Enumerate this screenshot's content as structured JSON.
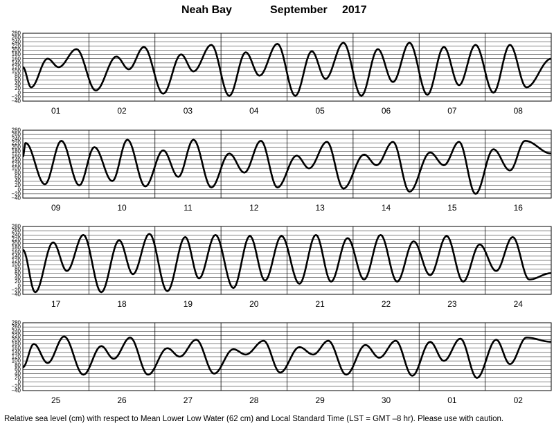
{
  "title": {
    "location": "Neah Bay",
    "month": "September",
    "year": "2017"
  },
  "caption": "Relative sea level (cm) with respect to Mean Lower Low Water (62 cm) and Local Standard Time (LST = GMT –8 hr). Please use with caution.",
  "chart_data": {
    "type": "line",
    "units": "cm",
    "ylim": [
      -40,
      280
    ],
    "yticks": [
      -40,
      -20,
      0,
      20,
      40,
      60,
      80,
      100,
      120,
      140,
      160,
      180,
      200,
      220,
      240,
      260,
      280
    ],
    "ytick_labels": [
      "−40",
      "−20",
      "0",
      "20",
      "40",
      "60",
      "80",
      "100",
      "120",
      "140",
      "160",
      "180",
      "200",
      "220",
      "240",
      "260",
      "280"
    ],
    "grid": true,
    "days": [
      "01",
      "02",
      "03",
      "04",
      "05",
      "06",
      "07",
      "08",
      "09",
      "10",
      "11",
      "12",
      "13",
      "14",
      "15",
      "16",
      "17",
      "18",
      "19",
      "20",
      "21",
      "22",
      "23",
      "24",
      "25",
      "26",
      "27",
      "28",
      "29",
      "30",
      "01",
      "02"
    ],
    "panels": [
      {
        "days": [
          "01",
          "02",
          "03",
          "04",
          "05",
          "06",
          "07",
          "08"
        ],
        "extrema": [
          [
            0,
            120
          ],
          [
            3,
            25
          ],
          [
            9,
            160
          ],
          [
            13,
            120
          ],
          [
            19.5,
            205
          ],
          [
            26.5,
            10
          ],
          [
            34,
            170
          ],
          [
            38.5,
            110
          ],
          [
            44,
            215
          ],
          [
            51,
            -5
          ],
          [
            57.5,
            180
          ],
          [
            62,
            100
          ],
          [
            68.5,
            225
          ],
          [
            75,
            -15
          ],
          [
            81,
            190
          ],
          [
            86,
            80
          ],
          [
            92.5,
            230
          ],
          [
            99,
            -15
          ],
          [
            105,
            195
          ],
          [
            110,
            65
          ],
          [
            116.5,
            235
          ],
          [
            123,
            -15
          ],
          [
            129,
            205
          ],
          [
            134.5,
            50
          ],
          [
            140.5,
            235
          ],
          [
            147,
            -10
          ],
          [
            153,
            215
          ],
          [
            158.5,
            35
          ],
          [
            164.5,
            225
          ],
          [
            171,
            0
          ],
          [
            177,
            225
          ],
          [
            183,
            25
          ],
          [
            192,
            160
          ]
        ]
      },
      {
        "days": [
          "09",
          "10",
          "11",
          "12",
          "13",
          "14",
          "15",
          "16"
        ],
        "extrema": [
          [
            0,
            155
          ],
          [
            1,
            220
          ],
          [
            8,
            25
          ],
          [
            14,
            230
          ],
          [
            20.5,
            20
          ],
          [
            26,
            200
          ],
          [
            32.5,
            40
          ],
          [
            38,
            235
          ],
          [
            44.5,
            15
          ],
          [
            51,
            185
          ],
          [
            56.5,
            60
          ],
          [
            62,
            235
          ],
          [
            68.5,
            10
          ],
          [
            75,
            170
          ],
          [
            80.5,
            80
          ],
          [
            86.5,
            230
          ],
          [
            92.5,
            10
          ],
          [
            99.5,
            160
          ],
          [
            104,
            100
          ],
          [
            110.5,
            225
          ],
          [
            116.5,
            5
          ],
          [
            124,
            165
          ],
          [
            128.5,
            115
          ],
          [
            134.5,
            225
          ],
          [
            140.5,
            -10
          ],
          [
            148,
            175
          ],
          [
            153,
            115
          ],
          [
            158.5,
            225
          ],
          [
            164.5,
            -20
          ],
          [
            171,
            190
          ],
          [
            177,
            90
          ],
          [
            182.5,
            230
          ],
          [
            192,
            170
          ]
        ]
      },
      {
        "days": [
          "17",
          "18",
          "19",
          "20",
          "21",
          "22",
          "23",
          "24"
        ],
        "extrema": [
          [
            0,
            170
          ],
          [
            4.5,
            -30
          ],
          [
            11,
            205
          ],
          [
            16,
            70
          ],
          [
            22,
            240
          ],
          [
            28.5,
            -30
          ],
          [
            35,
            215
          ],
          [
            40,
            55
          ],
          [
            46,
            245
          ],
          [
            52.5,
            -25
          ],
          [
            59,
            230
          ],
          [
            64,
            35
          ],
          [
            70,
            240
          ],
          [
            76.5,
            -10
          ],
          [
            82.5,
            235
          ],
          [
            88,
            25
          ],
          [
            94,
            235
          ],
          [
            100.5,
            10
          ],
          [
            106.5,
            240
          ],
          [
            112,
            20
          ],
          [
            118,
            225
          ],
          [
            124,
            30
          ],
          [
            130,
            240
          ],
          [
            136,
            20
          ],
          [
            142,
            210
          ],
          [
            148,
            50
          ],
          [
            154,
            235
          ],
          [
            160,
            20
          ],
          [
            166,
            195
          ],
          [
            172,
            70
          ],
          [
            178,
            230
          ],
          [
            184,
            30
          ],
          [
            192,
            60
          ]
        ]
      },
      {
        "days": [
          "25",
          "26",
          "27",
          "28",
          "29",
          "30",
          "01",
          "02"
        ],
        "extrema": [
          [
            0,
            70
          ],
          [
            4,
            180
          ],
          [
            9,
            90
          ],
          [
            15,
            215
          ],
          [
            22,
            35
          ],
          [
            28.5,
            170
          ],
          [
            33,
            110
          ],
          [
            39,
            210
          ],
          [
            45.5,
            35
          ],
          [
            52.5,
            160
          ],
          [
            57,
            120
          ],
          [
            63,
            200
          ],
          [
            69.5,
            40
          ],
          [
            76.5,
            155
          ],
          [
            81,
            130
          ],
          [
            87.5,
            195
          ],
          [
            93.5,
            45
          ],
          [
            100.5,
            165
          ],
          [
            105.5,
            130
          ],
          [
            111,
            195
          ],
          [
            117.5,
            35
          ],
          [
            124.5,
            175
          ],
          [
            129.5,
            115
          ],
          [
            135.5,
            195
          ],
          [
            141.5,
            30
          ],
          [
            148,
            190
          ],
          [
            153,
            100
          ],
          [
            159,
            205
          ],
          [
            165,
            20
          ],
          [
            172,
            200
          ],
          [
            177,
            85
          ],
          [
            183,
            210
          ],
          [
            192,
            190
          ]
        ]
      }
    ]
  }
}
